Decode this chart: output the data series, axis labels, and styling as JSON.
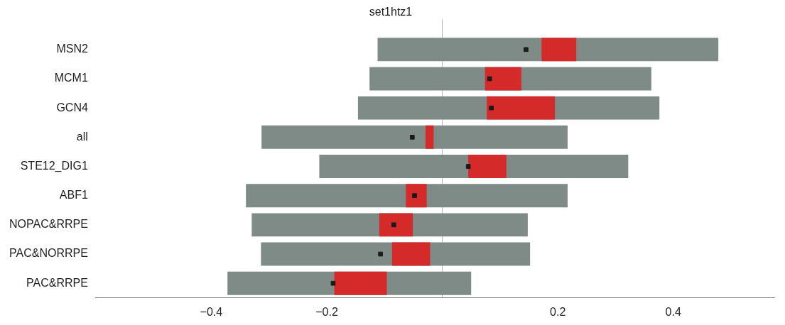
{
  "chart_data": {
    "type": "bar",
    "title": "set1htz1",
    "orientation": "horizontal",
    "categories": [
      "MSN2",
      "MCM1",
      "GCN4",
      "all",
      "STE12_DIG1",
      "ABF1",
      "NOPAC&RRPE",
      "PAC&NORRPE",
      "PAC&RRPE"
    ],
    "series": [
      {
        "color": "#7f8b87",
        "base": [
          -0.112,
          -0.126,
          -0.146,
          -0.313,
          -0.213,
          -0.34,
          -0.33,
          -0.314,
          -0.372
        ],
        "values": [
          0.59,
          0.488,
          0.522,
          0.53,
          0.535,
          0.557,
          0.478,
          0.466,
          0.422
        ]
      },
      {
        "color": "#d42a2a",
        "base": [
          0.172,
          0.074,
          0.077,
          -0.029,
          0.045,
          -0.063,
          -0.109,
          -0.087,
          -0.187
        ],
        "values": [
          0.06,
          0.063,
          0.118,
          0.014,
          0.066,
          0.036,
          0.058,
          0.066,
          0.091
        ]
      },
      {
        "type": "scatter",
        "color": "#1a1a1a",
        "marker": "square",
        "values": [
          0.145,
          0.082,
          0.085,
          -0.052,
          0.045,
          -0.048,
          -0.084,
          -0.107,
          -0.189
        ]
      }
    ],
    "xlim": [
      -0.6,
      0.575
    ],
    "xticks": [
      {
        "value": -0.4,
        "label": "−0.4"
      },
      {
        "value": -0.2,
        "label": "−0.2"
      },
      0.2,
      0.4
    ],
    "ref_lines": [
      {
        "axis": "x",
        "value": 0,
        "color": "#b0b0b0"
      }
    ],
    "grid": false,
    "legend": false
  }
}
